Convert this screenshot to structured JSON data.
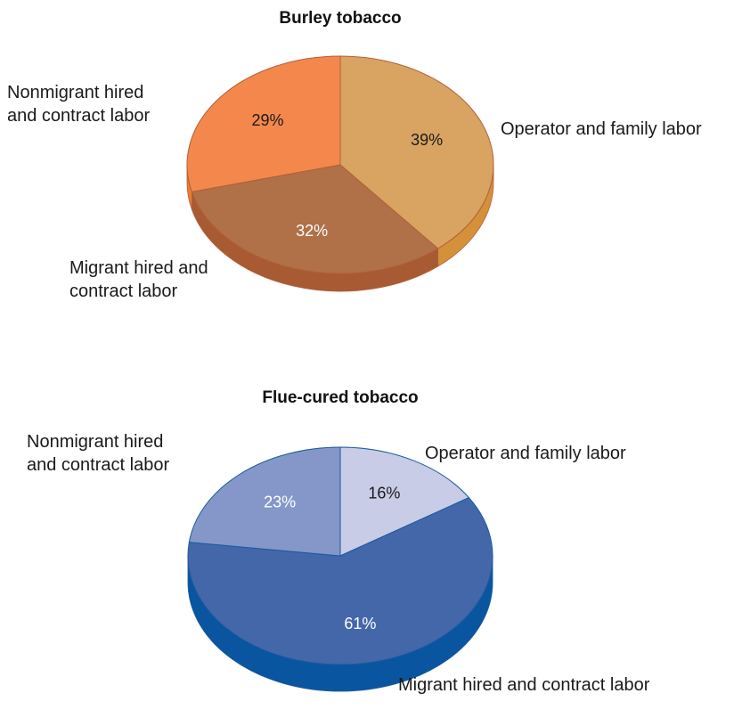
{
  "chart_data": [
    {
      "type": "pie",
      "title": "Burley tobacco",
      "categories": [
        "Operator and family labor",
        "Migrant hired and contract labor",
        "Nonmigrant hired and contract labor"
      ],
      "values": [
        39,
        32,
        29
      ],
      "value_labels": [
        "39%",
        "32%",
        "29%"
      ],
      "colors": [
        "#d9a362",
        "#b07048",
        "#f4884c"
      ],
      "side_colors": [
        "#d4913a",
        "#a85a32",
        "#ee7a35"
      ],
      "edge_color": "#b0603a"
    },
    {
      "type": "pie",
      "title": "Flue-cured tobacco",
      "categories": [
        "Operator and family labor",
        "Migrant hired and contract labor",
        "Nonmigrant hired and contract labor"
      ],
      "values": [
        16,
        61,
        23
      ],
      "value_labels": [
        "16%",
        "61%",
        "23%"
      ],
      "colors": [
        "#c8cce6",
        "#4467aa",
        "#8497c8"
      ],
      "side_colors": [
        "#0a55a0",
        "#0a55a0",
        "#0a55a0"
      ],
      "edge_color": "#1a5aa0"
    }
  ]
}
